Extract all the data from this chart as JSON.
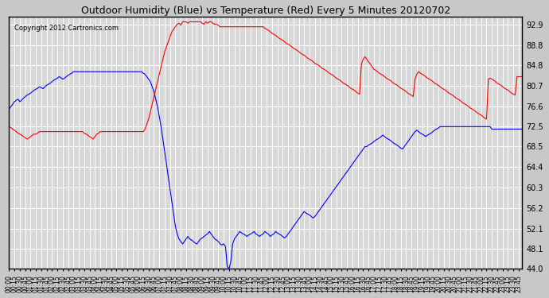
{
  "title": "Outdoor Humidity (Blue) vs Temperature (Red) Every 5 Minutes 20120702",
  "copyright": "Copyright 2012 Cartronics.com",
  "background_color": "#c8c8c8",
  "plot_bg_color": "#d8d8d8",
  "grid_color": "white",
  "y_ticks": [
    44.0,
    48.1,
    52.1,
    56.2,
    60.3,
    64.4,
    68.5,
    72.5,
    76.6,
    80.7,
    84.8,
    88.8,
    92.9
  ],
  "y_min": 44.0,
  "y_max": 94.5,
  "humidity_color": "blue",
  "temperature_color": "red",
  "n_points": 288,
  "humidity_data": [
    76.0,
    76.5,
    77.0,
    77.5,
    77.8,
    78.0,
    77.5,
    77.8,
    78.2,
    78.5,
    78.8,
    79.0,
    79.2,
    79.5,
    79.8,
    80.0,
    80.2,
    80.5,
    80.3,
    80.1,
    80.5,
    80.8,
    81.0,
    81.2,
    81.5,
    81.8,
    82.0,
    82.2,
    82.5,
    82.3,
    82.0,
    82.2,
    82.5,
    82.8,
    83.0,
    83.2,
    83.5,
    83.5,
    83.5,
    83.5,
    83.5,
    83.5,
    83.5,
    83.5,
    83.5,
    83.5,
    83.5,
    83.5,
    83.5,
    83.5,
    83.5,
    83.5,
    83.5,
    83.5,
    83.5,
    83.5,
    83.5,
    83.5,
    83.5,
    83.5,
    83.5,
    83.5,
    83.5,
    83.5,
    83.5,
    83.5,
    83.5,
    83.5,
    83.5,
    83.5,
    83.5,
    83.5,
    83.5,
    83.5,
    83.5,
    83.2,
    83.0,
    82.5,
    82.0,
    81.5,
    80.5,
    79.5,
    78.0,
    76.5,
    74.5,
    72.5,
    70.0,
    67.5,
    65.0,
    62.5,
    60.0,
    57.5,
    55.0,
    52.5,
    51.0,
    50.0,
    49.5,
    49.0,
    49.5,
    50.0,
    50.5,
    50.0,
    49.8,
    49.5,
    49.2,
    49.0,
    49.5,
    50.0,
    50.2,
    50.5,
    50.8,
    51.0,
    51.5,
    51.0,
    50.5,
    50.0,
    49.8,
    49.5,
    49.0,
    48.8,
    49.0,
    48.5,
    44.5,
    44.0,
    45.5,
    49.0,
    50.0,
    50.5,
    51.0,
    51.5,
    51.2,
    51.0,
    50.8,
    50.5,
    50.8,
    51.0,
    51.2,
    51.5,
    51.0,
    50.8,
    50.5,
    50.8,
    51.0,
    51.5,
    51.2,
    51.0,
    50.5,
    50.8,
    51.0,
    51.5,
    51.2,
    51.0,
    50.8,
    50.5,
    50.2,
    50.5,
    51.0,
    51.5,
    52.0,
    52.5,
    53.0,
    53.5,
    54.0,
    54.5,
    55.0,
    55.5,
    55.2,
    55.0,
    54.8,
    54.5,
    54.2,
    54.5,
    55.0,
    55.5,
    56.0,
    56.5,
    57.0,
    57.5,
    58.0,
    58.5,
    59.0,
    59.5,
    60.0,
    60.5,
    61.0,
    61.5,
    62.0,
    62.5,
    63.0,
    63.5,
    64.0,
    64.5,
    65.0,
    65.5,
    66.0,
    66.5,
    67.0,
    67.5,
    68.0,
    68.5,
    68.5,
    68.8,
    69.0,
    69.2,
    69.5,
    69.8,
    70.0,
    70.2,
    70.5,
    70.8,
    70.5,
    70.2,
    70.0,
    69.8,
    69.5,
    69.2,
    69.0,
    68.8,
    68.5,
    68.2,
    68.0,
    68.5,
    69.0,
    69.5,
    70.0,
    70.5,
    71.0,
    71.5,
    71.8,
    71.5,
    71.2,
    71.0,
    70.8,
    70.5,
    70.8,
    71.0,
    71.2,
    71.5,
    71.8,
    72.0,
    72.2,
    72.5,
    72.5,
    72.5,
    72.5,
    72.5,
    72.5,
    72.5,
    72.5,
    72.5,
    72.5,
    72.5,
    72.5,
    72.5,
    72.5,
    72.5,
    72.5,
    72.5,
    72.5,
    72.5,
    72.5,
    72.5,
    72.5,
    72.5,
    72.5,
    72.5,
    72.5,
    72.5,
    72.5,
    72.5,
    72.0,
    72.0,
    72.0,
    72.0,
    72.0,
    72.0,
    72.0,
    72.0,
    72.0,
    72.0,
    72.0,
    72.0,
    72.0,
    72.0,
    72.0,
    72.0,
    72.0,
    72.0
  ],
  "temperature_data": [
    72.5,
    72.3,
    72.0,
    71.8,
    71.5,
    71.2,
    71.0,
    70.8,
    70.5,
    70.3,
    70.0,
    70.2,
    70.5,
    70.8,
    71.0,
    71.0,
    71.2,
    71.5,
    71.5,
    71.5,
    71.5,
    71.5,
    71.5,
    71.5,
    71.5,
    71.5,
    71.5,
    71.5,
    71.5,
    71.5,
    71.5,
    71.5,
    71.5,
    71.5,
    71.5,
    71.5,
    71.5,
    71.5,
    71.5,
    71.5,
    71.5,
    71.5,
    71.2,
    71.0,
    70.8,
    70.5,
    70.3,
    70.0,
    70.5,
    71.0,
    71.2,
    71.5,
    71.5,
    71.5,
    71.5,
    71.5,
    71.5,
    71.5,
    71.5,
    71.5,
    71.5,
    71.5,
    71.5,
    71.5,
    71.5,
    71.5,
    71.5,
    71.5,
    71.5,
    71.5,
    71.5,
    71.5,
    71.5,
    71.5,
    71.5,
    71.5,
    72.0,
    73.0,
    74.0,
    75.5,
    77.0,
    78.5,
    80.0,
    81.5,
    83.0,
    84.5,
    86.0,
    87.5,
    88.5,
    89.5,
    90.5,
    91.5,
    92.0,
    92.5,
    93.0,
    93.2,
    92.8,
    93.5,
    93.5,
    93.5,
    93.2,
    93.5,
    93.5,
    93.5,
    93.5,
    93.5,
    93.5,
    93.5,
    93.2,
    93.0,
    93.5,
    93.2,
    93.5,
    93.5,
    93.2,
    93.0,
    93.0,
    92.8,
    92.5,
    92.5,
    92.5,
    92.5,
    92.5,
    92.5,
    92.5,
    92.5,
    92.5,
    92.5,
    92.5,
    92.5,
    92.5,
    92.5,
    92.5,
    92.5,
    92.5,
    92.5,
    92.5,
    92.5,
    92.5,
    92.5,
    92.5,
    92.5,
    92.5,
    92.2,
    92.0,
    91.8,
    91.5,
    91.2,
    91.0,
    90.8,
    90.5,
    90.2,
    90.0,
    89.8,
    89.5,
    89.2,
    89.0,
    88.8,
    88.5,
    88.2,
    88.0,
    87.8,
    87.5,
    87.2,
    87.0,
    86.8,
    86.5,
    86.2,
    86.0,
    85.8,
    85.5,
    85.2,
    85.0,
    84.8,
    84.5,
    84.2,
    84.0,
    83.8,
    83.5,
    83.2,
    83.0,
    82.8,
    82.5,
    82.2,
    82.0,
    81.8,
    81.5,
    81.2,
    81.0,
    80.8,
    80.5,
    80.2,
    80.0,
    79.8,
    79.5,
    79.2,
    79.0,
    85.0,
    86.0,
    86.5,
    86.0,
    85.5,
    85.0,
    84.5,
    84.0,
    83.8,
    83.5,
    83.2,
    83.0,
    82.8,
    82.5,
    82.2,
    82.0,
    81.8,
    81.5,
    81.2,
    81.0,
    80.8,
    80.5,
    80.2,
    80.0,
    79.8,
    79.5,
    79.2,
    79.0,
    78.8,
    78.5,
    82.0,
    83.0,
    83.5,
    83.2,
    83.0,
    82.8,
    82.5,
    82.2,
    82.0,
    81.8,
    81.5,
    81.2,
    81.0,
    80.8,
    80.5,
    80.2,
    80.0,
    79.8,
    79.5,
    79.2,
    79.0,
    78.8,
    78.5,
    78.2,
    78.0,
    77.8,
    77.5,
    77.2,
    77.0,
    76.8,
    76.5,
    76.2,
    76.0,
    75.8,
    75.5,
    75.2,
    75.0,
    74.8,
    74.5,
    74.2,
    74.0,
    82.0,
    82.2,
    82.0,
    81.8,
    81.5,
    81.2,
    81.0,
    80.8,
    80.5,
    80.2,
    80.0,
    79.8,
    79.5,
    79.2,
    79.0,
    78.8,
    82.5,
    82.5,
    82.5,
    82.5
  ]
}
